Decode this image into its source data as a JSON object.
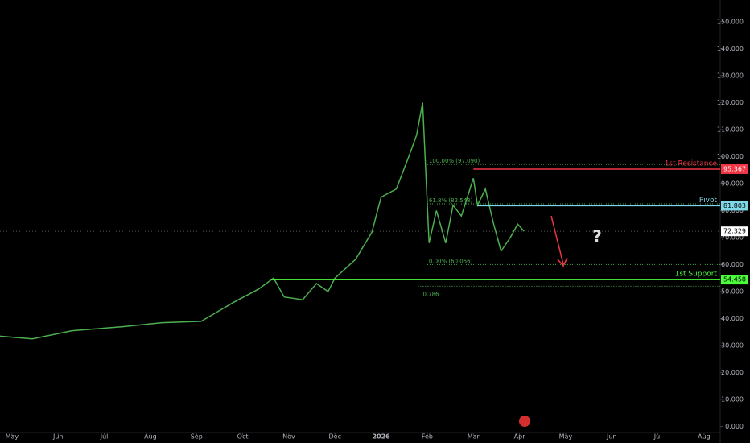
{
  "chart_data": {
    "type": "line",
    "x": [
      -0.26,
      0.44,
      1.3,
      2.4,
      3.25,
      4.1,
      4.8,
      5.35,
      5.67,
      5.9,
      6.3,
      6.6,
      6.85,
      7.0,
      7.45,
      7.8,
      8.0,
      8.33,
      8.6,
      8.77,
      8.9,
      8.98,
      9.04,
      9.2,
      9.4,
      9.56,
      9.74,
      10.0,
      10.09,
      10.26,
      10.44,
      10.6,
      10.8,
      10.96,
      11.1
    ],
    "series": [
      {
        "color": "#4caf50",
        "values": [
          33.5,
          32.5,
          35.5,
          37,
          38.5,
          39,
          46,
          51,
          55,
          48,
          47,
          53,
          50,
          55,
          62,
          72,
          85,
          88,
          100,
          108,
          120,
          90,
          68,
          80,
          68,
          82,
          78,
          92,
          82,
          88,
          75,
          65,
          70,
          75,
          72.329
        ]
      }
    ],
    "xlim": [
      -0.26,
      15.35
    ],
    "xticks": [
      {
        "value": 0,
        "label": "May"
      },
      {
        "value": 1,
        "label": "Jun"
      },
      {
        "value": 2,
        "label": "Jul"
      },
      {
        "value": 3,
        "label": "Aug"
      },
      {
        "value": 4,
        "label": "Sep"
      },
      {
        "value": 5,
        "label": "Oct"
      },
      {
        "value": 6,
        "label": "Nov"
      },
      {
        "value": 7,
        "label": "Dec"
      },
      {
        "value": 8,
        "label": "2026"
      },
      {
        "value": 9,
        "label": "Feb"
      },
      {
        "value": 10,
        "label": "Mar"
      },
      {
        "value": 11,
        "label": "Apr"
      },
      {
        "value": 12,
        "label": "May"
      },
      {
        "value": 13,
        "label": "Jun"
      },
      {
        "value": 14,
        "label": "Jul"
      },
      {
        "value": 15,
        "label": "Aug"
      }
    ],
    "ylim": [
      -1,
      158
    ],
    "yticks": [
      {
        "value": 0,
        "label": "0.000"
      },
      {
        "value": 10,
        "label": "10.000"
      },
      {
        "value": 20,
        "label": "20.000"
      },
      {
        "value": 30,
        "label": "30.000"
      },
      {
        "value": 40,
        "label": "40.000"
      },
      {
        "value": 50,
        "label": "50.000"
      },
      {
        "value": 60,
        "label": "60.000"
      },
      {
        "value": 70,
        "label": "70.000"
      },
      {
        "value": 80,
        "label": "80.000"
      },
      {
        "value": 90,
        "label": "90.000"
      },
      {
        "value": 100,
        "label": "100.000"
      },
      {
        "value": 110,
        "label": "110.000"
      },
      {
        "value": 120,
        "label": "120.000"
      },
      {
        "value": 130,
        "label": "130.000"
      },
      {
        "value": 140,
        "label": "140.000"
      },
      {
        "value": 150,
        "label": "150.000"
      }
    ],
    "levels": [
      {
        "name": "1st Resistance",
        "value": 95.367,
        "start": 10.0,
        "color": "#f23645"
      },
      {
        "name": "Pivot",
        "value": 81.803,
        "start": 10.09,
        "color": "#7fd8e8"
      },
      {
        "name": "1st Support",
        "value": 54.458,
        "start": 5.62,
        "color": "#4cff3a"
      }
    ],
    "last_price": 72.329,
    "fib": [
      {
        "label": "100.00% (97.090)",
        "value": 97.09,
        "start": 9.0
      },
      {
        "label": "61.8% (82.543)",
        "value": 82.543,
        "start": 9.0
      },
      {
        "label": "0.00% (60.056)",
        "value": 60.056,
        "start": 9.0
      },
      {
        "label": "0.786",
        "value": 52,
        "start": 8.8
      }
    ],
    "annotation": "?"
  }
}
